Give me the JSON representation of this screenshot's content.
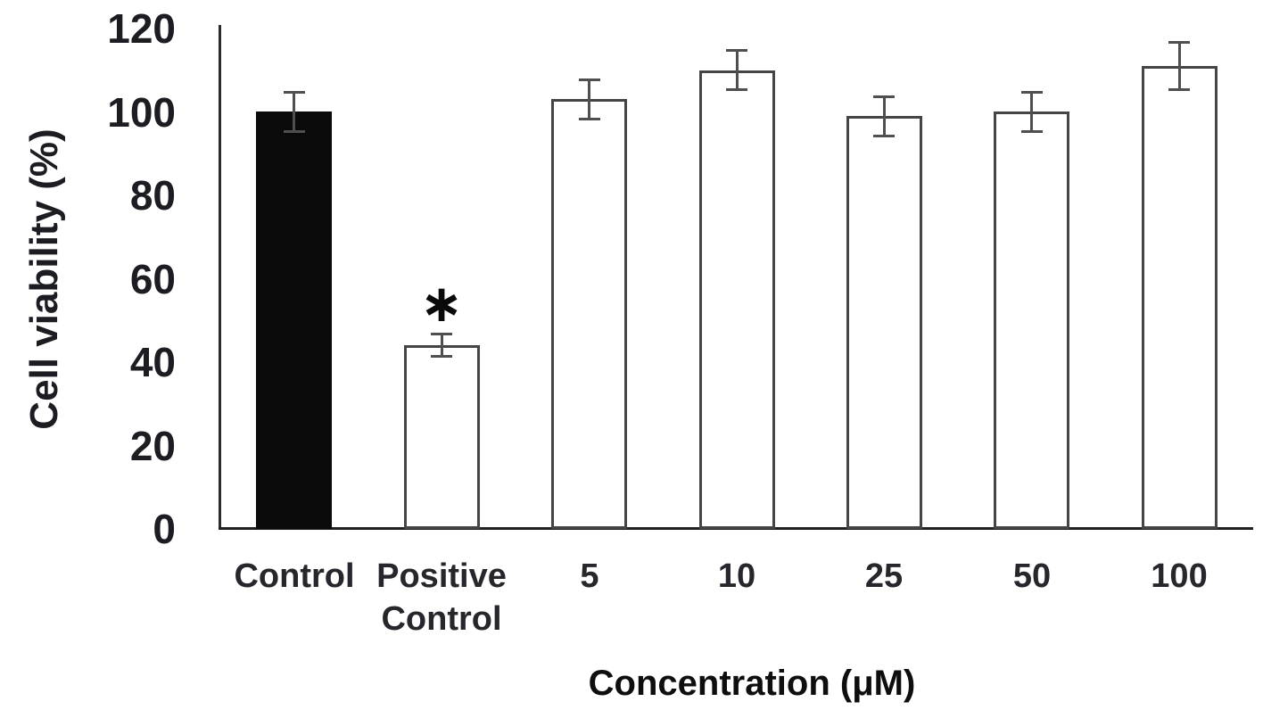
{
  "figure": {
    "background": "#ffffff"
  },
  "chart_data": {
    "type": "bar",
    "title": "",
    "xlabel": "Concentration (μM)",
    "ylabel": "Cell viability (%)",
    "ylim": [
      0,
      120
    ],
    "yticks": [
      0,
      20,
      40,
      60,
      80,
      100,
      120
    ],
    "grid": false,
    "legend": null,
    "categories": [
      "Control",
      "Positive Control",
      "5",
      "10",
      "25",
      "50",
      "100"
    ],
    "values": [
      100,
      44,
      103,
      110,
      99,
      100,
      111
    ],
    "errors": [
      5,
      3,
      5,
      5,
      5,
      5,
      6
    ],
    "bar_colors": [
      "#0a0a0a",
      "#ffffff",
      "#ffffff",
      "#ffffff",
      "#ffffff",
      "#ffffff",
      "#ffffff"
    ],
    "bar_border_color": "#454545",
    "error_bar_color": "#4f4f4f",
    "axis_color": "#1f1f1f",
    "text_color": "#1c1c22",
    "annotations": [
      {
        "category_index": 1,
        "text": "∗"
      }
    ]
  }
}
